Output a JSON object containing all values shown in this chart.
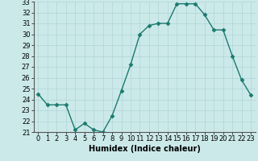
{
  "x": [
    0,
    1,
    2,
    3,
    4,
    5,
    6,
    7,
    8,
    9,
    10,
    11,
    12,
    13,
    14,
    15,
    16,
    17,
    18,
    19,
    20,
    21,
    22,
    23
  ],
  "y": [
    24.5,
    23.5,
    23.5,
    23.5,
    21.2,
    21.8,
    21.2,
    21.0,
    22.5,
    24.8,
    27.2,
    30.0,
    30.8,
    31.0,
    31.0,
    32.8,
    32.8,
    32.8,
    31.8,
    30.4,
    30.4,
    28.0,
    25.8,
    24.4
  ],
  "xlabel": "Humidex (Indice chaleur)",
  "ylim": [
    21,
    33
  ],
  "xlim": [
    -0.5,
    23.5
  ],
  "yticks": [
    21,
    22,
    23,
    24,
    25,
    26,
    27,
    28,
    29,
    30,
    31,
    32,
    33
  ],
  "xticks": [
    0,
    1,
    2,
    3,
    4,
    5,
    6,
    7,
    8,
    9,
    10,
    11,
    12,
    13,
    14,
    15,
    16,
    17,
    18,
    19,
    20,
    21,
    22,
    23
  ],
  "line_color": "#1a7a6e",
  "marker": "D",
  "marker_size": 2.5,
  "bg_color": "#cce9ea",
  "grid_color": "#afd4d5",
  "label_fontsize": 7,
  "tick_fontsize": 6
}
